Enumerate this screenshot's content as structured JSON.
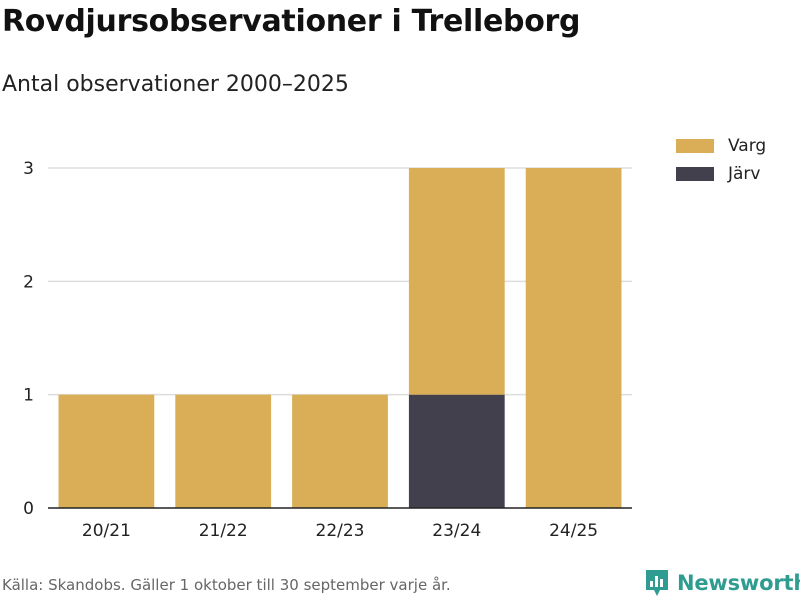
{
  "header": {
    "title": "Rovdjursobservationer i Trelleborg",
    "subtitle": "Antal observationer 2000–2025"
  },
  "footer": {
    "source": "Källa: Skandobs. Gäller 1 oktober till 30 september varje år.",
    "brand": "Newsworthy"
  },
  "chart_data": {
    "type": "bar",
    "stacked": true,
    "title": "Rovdjursobservationer i Trelleborg",
    "subtitle": "Antal observationer 2000–2025",
    "categories": [
      "20/21",
      "21/22",
      "22/23",
      "23/24",
      "24/25"
    ],
    "series": [
      {
        "name": "Järv",
        "color": "#43404d",
        "values": [
          0,
          0,
          0,
          1,
          0
        ]
      },
      {
        "name": "Varg",
        "color": "#d9ae57",
        "values": [
          1,
          1,
          1,
          2,
          3
        ]
      }
    ],
    "legend_order": [
      "Varg",
      "Järv"
    ],
    "legend_position": "top-right",
    "ylim": [
      0,
      3
    ],
    "yticks": [
      0,
      1,
      2,
      3
    ],
    "grid": "horizontal",
    "xlabel": "",
    "ylabel": ""
  },
  "colors": {
    "varg": "#d9ae57",
    "jarv": "#43404d",
    "grid": "#dddddd",
    "axis": "#222222",
    "brand": "#2f9c91"
  }
}
